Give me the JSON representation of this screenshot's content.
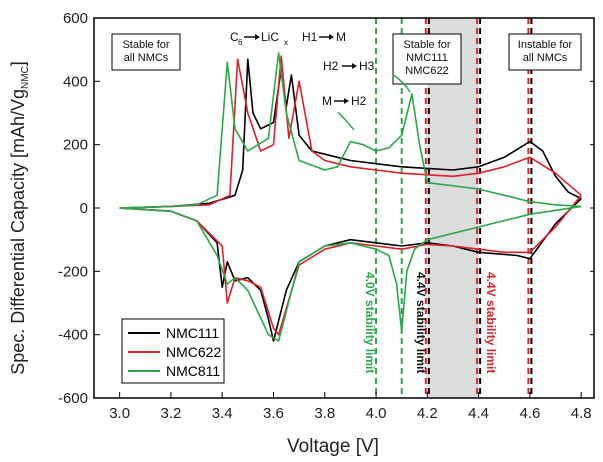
{
  "chart_data": {
    "type": "line",
    "xlabel": "Voltage [V]",
    "ylabel": "Spec. Differential Capacity [mAh/Vg",
    "ylabel_sub": "NMC",
    "ylabel_close": "]",
    "xlim": [
      2.9,
      4.85
    ],
    "ylim": [
      -600,
      600
    ],
    "x_ticks": [
      3.0,
      3.2,
      3.4,
      3.6,
      3.8,
      4.0,
      4.2,
      4.4,
      4.6,
      4.8
    ],
    "x_tick_labels": [
      "3.0",
      "3.2",
      "3.4",
      "3.6",
      "3.8",
      "4.0",
      "4.2",
      "4.4",
      "4.6",
      "4.8"
    ],
    "y_ticks": [
      -600,
      -400,
      -200,
      0,
      200,
      400,
      600
    ],
    "y_tick_labels": [
      "-600",
      "-400",
      "-200",
      "0",
      "200",
      "400",
      "600"
    ],
    "shaded_region": [
      4.2,
      4.4
    ],
    "legend": {
      "placement": "bottom-left",
      "entries": [
        "NMC111",
        "NMC622",
        "NMC811"
      ]
    },
    "colors": {
      "NMC111": "#000000",
      "NMC622": "#e0202a",
      "NMC811": "#2aa84a",
      "shade": "#dcdcdc"
    },
    "series": [
      {
        "name": "NMC111",
        "charge": [
          [
            3.0,
            0
          ],
          [
            3.2,
            5
          ],
          [
            3.35,
            15
          ],
          [
            3.45,
            40
          ],
          [
            3.48,
            120
          ],
          [
            3.5,
            470
          ],
          [
            3.52,
            300
          ],
          [
            3.55,
            250
          ],
          [
            3.6,
            270
          ],
          [
            3.63,
            440
          ],
          [
            3.65,
            320
          ],
          [
            3.67,
            420
          ],
          [
            3.7,
            230
          ],
          [
            3.75,
            180
          ],
          [
            3.8,
            170
          ],
          [
            3.9,
            150
          ],
          [
            4.0,
            140
          ],
          [
            4.1,
            130
          ],
          [
            4.2,
            125
          ],
          [
            4.3,
            120
          ],
          [
            4.4,
            130
          ],
          [
            4.5,
            160
          ],
          [
            4.6,
            210
          ],
          [
            4.65,
            180
          ],
          [
            4.7,
            100
          ],
          [
            4.75,
            50
          ],
          [
            4.8,
            30
          ]
        ],
        "discharge": [
          [
            4.8,
            30
          ],
          [
            4.7,
            -50
          ],
          [
            4.6,
            -160
          ],
          [
            4.55,
            -150
          ],
          [
            4.4,
            -140
          ],
          [
            4.3,
            -120
          ],
          [
            4.2,
            -110
          ],
          [
            4.1,
            -120
          ],
          [
            4.0,
            -110
          ],
          [
            3.9,
            -100
          ],
          [
            3.8,
            -120
          ],
          [
            3.7,
            -170
          ],
          [
            3.65,
            -260
          ],
          [
            3.6,
            -420
          ],
          [
            3.58,
            -350
          ],
          [
            3.55,
            -260
          ],
          [
            3.5,
            -220
          ],
          [
            3.45,
            -230
          ],
          [
            3.42,
            -170
          ],
          [
            3.4,
            -250
          ],
          [
            3.38,
            -110
          ],
          [
            3.3,
            -40
          ],
          [
            3.2,
            -10
          ],
          [
            3.0,
            0
          ]
        ]
      },
      {
        "name": "NMC622",
        "charge": [
          [
            3.0,
            0
          ],
          [
            3.2,
            5
          ],
          [
            3.35,
            10
          ],
          [
            3.43,
            40
          ],
          [
            3.46,
            470
          ],
          [
            3.5,
            300
          ],
          [
            3.55,
            180
          ],
          [
            3.6,
            200
          ],
          [
            3.63,
            480
          ],
          [
            3.66,
            220
          ],
          [
            3.7,
            400
          ],
          [
            3.75,
            180
          ],
          [
            3.8,
            150
          ],
          [
            3.9,
            130
          ],
          [
            4.0,
            120
          ],
          [
            4.1,
            110
          ],
          [
            4.2,
            105
          ],
          [
            4.3,
            100
          ],
          [
            4.4,
            110
          ],
          [
            4.5,
            130
          ],
          [
            4.6,
            160
          ],
          [
            4.7,
            110
          ],
          [
            4.8,
            40
          ]
        ],
        "discharge": [
          [
            4.8,
            40
          ],
          [
            4.7,
            -60
          ],
          [
            4.6,
            -140
          ],
          [
            4.5,
            -140
          ],
          [
            4.4,
            -130
          ],
          [
            4.3,
            -120
          ],
          [
            4.2,
            -115
          ],
          [
            4.1,
            -130
          ],
          [
            4.0,
            -120
          ],
          [
            3.9,
            -110
          ],
          [
            3.8,
            -130
          ],
          [
            3.7,
            -180
          ],
          [
            3.62,
            -400
          ],
          [
            3.6,
            -380
          ],
          [
            3.55,
            -250
          ],
          [
            3.5,
            -230
          ],
          [
            3.45,
            -220
          ],
          [
            3.42,
            -300
          ],
          [
            3.4,
            -120
          ],
          [
            3.3,
            -40
          ],
          [
            3.2,
            -10
          ],
          [
            3.0,
            0
          ]
        ]
      },
      {
        "name": "NMC811",
        "charge": [
          [
            3.0,
            0
          ],
          [
            3.2,
            5
          ],
          [
            3.3,
            10
          ],
          [
            3.38,
            40
          ],
          [
            3.42,
            460
          ],
          [
            3.45,
            250
          ],
          [
            3.5,
            180
          ],
          [
            3.58,
            220
          ],
          [
            3.62,
            490
          ],
          [
            3.65,
            300
          ],
          [
            3.7,
            150
          ],
          [
            3.8,
            120
          ],
          [
            3.85,
            130
          ],
          [
            3.9,
            210
          ],
          [
            3.95,
            200
          ],
          [
            4.0,
            180
          ],
          [
            4.05,
            190
          ],
          [
            4.1,
            230
          ],
          [
            4.14,
            360
          ],
          [
            4.17,
            200
          ],
          [
            4.2,
            80
          ],
          [
            4.3,
            70
          ],
          [
            4.4,
            60
          ],
          [
            4.5,
            40
          ],
          [
            4.6,
            20
          ],
          [
            4.7,
            10
          ],
          [
            4.8,
            5
          ]
        ],
        "discharge": [
          [
            4.8,
            5
          ],
          [
            4.6,
            -20
          ],
          [
            4.4,
            -60
          ],
          [
            4.3,
            -80
          ],
          [
            4.2,
            -100
          ],
          [
            4.15,
            -130
          ],
          [
            4.12,
            -200
          ],
          [
            4.1,
            -390
          ],
          [
            4.08,
            -240
          ],
          [
            4.05,
            -150
          ],
          [
            4.0,
            -130
          ],
          [
            3.9,
            -110
          ],
          [
            3.8,
            -120
          ],
          [
            3.7,
            -170
          ],
          [
            3.62,
            -420
          ],
          [
            3.58,
            -400
          ],
          [
            3.5,
            -260
          ],
          [
            3.45,
            -220
          ],
          [
            3.42,
            -240
          ],
          [
            3.38,
            -150
          ],
          [
            3.3,
            -40
          ],
          [
            3.2,
            -10
          ],
          [
            3.0,
            0
          ]
        ]
      }
    ],
    "vlines": [
      {
        "x": 4.0,
        "color": "#2aa84a"
      },
      {
        "x": 4.1,
        "color": "#2aa84a"
      },
      {
        "x": 4.2,
        "color": "#e0202a"
      },
      {
        "x": 4.2,
        "color": "#000000"
      },
      {
        "x": 4.4,
        "color": "#e0202a"
      },
      {
        "x": 4.4,
        "color": "#000000"
      },
      {
        "x": 4.6,
        "color": "#e0202a"
      },
      {
        "x": 4.6,
        "color": "#000000"
      }
    ],
    "annotations": {
      "box_stable_all": "Stable for\nall NMCs",
      "box_stable_111_622": "Stable for\nNMC111\nNMC622",
      "box_instable": "Instable for\nall NMCs",
      "c6_pre": "C",
      "c6_sub": "6",
      "c6_post": "LiC",
      "c6_sub2": "x",
      "h1m_left": "H1",
      "h1m_right": "M",
      "mh2_left": "M",
      "mh2_right": "H2",
      "h2h3_left": "H2",
      "h2h3_right": "H3",
      "limit_40": "4.0V stability limit",
      "limit_44_black": "4.4V stability limit",
      "limit_44_red": "4.4V stability limit"
    }
  }
}
